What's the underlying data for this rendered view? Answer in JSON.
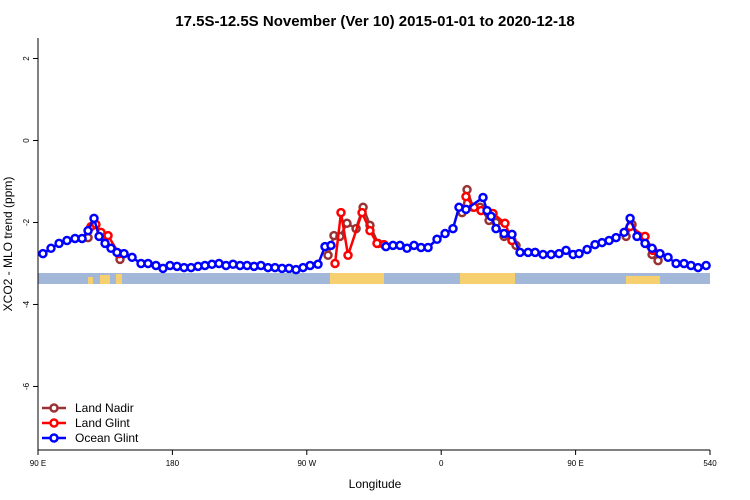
{
  "chart_data": {
    "type": "line",
    "title": "17.5S-12.5S November (Ver 10)   2015-01-01 to 2020-12-18",
    "x_label": "Longitude",
    "y_label": "XCO2 - MLO trend (ppm)",
    "xlim": [
      90,
      540
    ],
    "xticks": [
      {
        "value": 90,
        "label": "90 E"
      },
      180,
      {
        "value": 270,
        "label": "90 W"
      },
      {
        "value": 360,
        "label": "0"
      },
      {
        "value": 450,
        "label": "90 E"
      },
      540
    ],
    "ylim": [
      -7.55,
      2.5
    ],
    "yticks": [
      -6,
      -4,
      -2,
      0,
      2
    ],
    "legend": "bottom-left",
    "series": [
      {
        "name": "Land Nadir",
        "color": "#993333",
        "x": [
          123.5,
          127.5,
          144.9,
          200,
          284.2,
          288.2,
          292.2,
          296.9,
          303,
          307.7,
          312.3,
          317.7,
          340,
          374,
          377.3,
          381.3,
          386,
          392,
          396.7,
          402.1,
          407.4,
          410.1,
          450,
          483.8,
          487.8,
          501.2,
          505.2
        ],
        "values": [
          -2.37,
          -2.05,
          -2.9,
          null,
          -2.8,
          -2.32,
          -2.34,
          -2.02,
          -2.15,
          -1.63,
          -2.07,
          -2.51,
          null,
          -1.76,
          -1.2,
          -1.63,
          -1.63,
          -1.95,
          -2.0,
          -2.34,
          -2.44,
          -2.56,
          null,
          -2.34,
          -2.05,
          -2.78,
          -2.93
        ]
      },
      {
        "name": "Land Glint",
        "color": "#ff0000",
        "x": [
          125.5,
          128.8,
          132.2,
          136.9,
          144.2,
          200,
          288.9,
          292.9,
          297.6,
          307,
          312.3,
          317,
          321.7,
          340,
          376.6,
          382,
          386.7,
          394.7,
          402.7,
          407.4,
          450,
          486.5,
          496.5,
          501.8
        ],
        "values": [
          -2.1,
          -2.05,
          -2.24,
          -2.32,
          -2.76,
          null,
          -3.0,
          -1.76,
          -2.8,
          -1.76,
          -2.2,
          -2.51,
          -2.54,
          null,
          -1.37,
          -1.63,
          -1.71,
          -1.78,
          -2.02,
          -2.44,
          null,
          -2.1,
          -2.34,
          -2.68
        ]
      },
      {
        "name": "Ocean Glint",
        "color": "#0000ff",
        "x": [
          93.3,
          98.7,
          104.1,
          109.4,
          114.8,
          119.5,
          123.5,
          127.5,
          130.9,
          134.9,
          138.9,
          142.9,
          147.6,
          153,
          159,
          163.7,
          169,
          173.7,
          178.4,
          183.1,
          187.8,
          192.5,
          197.2,
          201.8,
          206.5,
          211.2,
          215.9,
          220.6,
          225.3,
          230,
          234.7,
          239.3,
          244,
          248.7,
          253.4,
          258.1,
          262.8,
          267.5,
          272.2,
          277.5,
          282.2,
          286.2,
          305,
          323,
          327.7,
          332.4,
          337.1,
          341.8,
          346.5,
          351.2,
          357.2,
          362.6,
          367.9,
          371.9,
          376.6,
          388,
          390.7,
          393.4,
          396.7,
          402.1,
          407.4,
          412.8,
          418.2,
          422.9,
          428.2,
          433.6,
          438.9,
          443.6,
          448.3,
          452.3,
          457.7,
          463,
          467.7,
          472.4,
          477.1,
          482.5,
          486.5,
          491.1,
          496.5,
          501.2,
          506.5,
          511.9,
          517.3,
          522.6,
          527.3,
          532,
          537.4
        ],
        "values": [
          -2.76,
          -2.63,
          -2.51,
          -2.44,
          -2.39,
          -2.39,
          -2.2,
          -1.9,
          -2.34,
          -2.51,
          -2.63,
          -2.73,
          -2.76,
          -2.85,
          -3.0,
          -3.0,
          -3.05,
          -3.12,
          -3.05,
          -3.07,
          -3.1,
          -3.1,
          -3.07,
          -3.05,
          -3.02,
          -3.0,
          -3.05,
          -3.02,
          -3.05,
          -3.05,
          -3.07,
          -3.05,
          -3.1,
          -3.1,
          -3.12,
          -3.12,
          -3.15,
          -3.1,
          -3.05,
          -3.02,
          -2.59,
          -2.56,
          null,
          -2.59,
          -2.56,
          -2.56,
          -2.63,
          -2.56,
          -2.61,
          -2.61,
          -2.41,
          -2.27,
          -2.15,
          -1.63,
          -1.68,
          -1.39,
          -1.71,
          -1.85,
          -2.15,
          -2.27,
          -2.29,
          -2.73,
          -2.73,
          -2.73,
          -2.78,
          -2.78,
          -2.76,
          -2.68,
          -2.78,
          -2.76,
          -2.66,
          -2.54,
          -2.49,
          -2.44,
          -2.37,
          -2.24,
          -1.9,
          -2.34,
          -2.51,
          -2.63,
          -2.76,
          -2.85,
          -3.0,
          -3.0,
          -3.05,
          -3.1,
          -3.05
        ]
      }
    ]
  }
}
